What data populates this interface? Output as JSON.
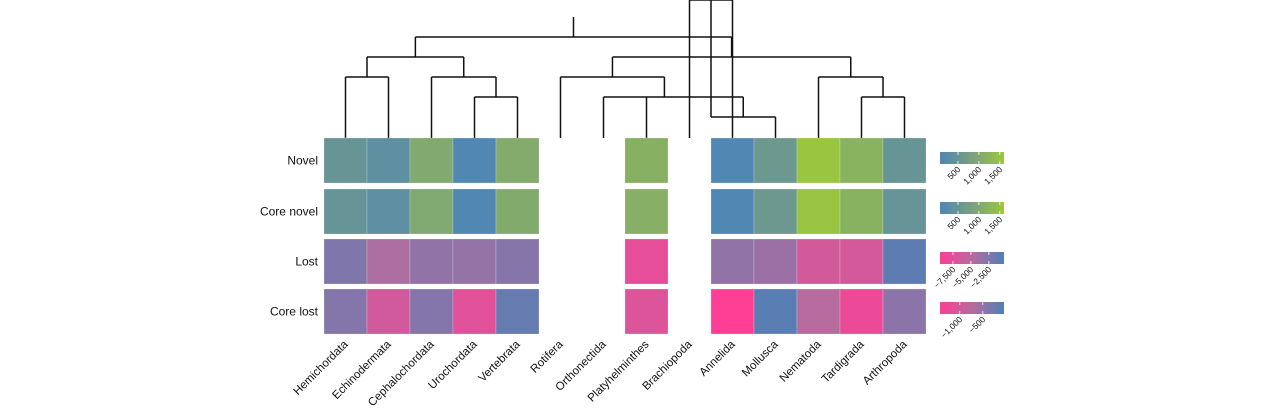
{
  "chart_data": {
    "type": "heatmap",
    "title": "",
    "columns": [
      "Hemichordata",
      "Echinodermata",
      "Cephalochordata",
      "Urochordata",
      "Vertebrata",
      "Rotifera",
      "Orthonectida",
      "Platyhelminthes",
      "Brachiopoda",
      "Annelida",
      "Mollusca",
      "Nematoda",
      "Tardigrada",
      "Arthropoda"
    ],
    "rows": [
      {
        "name": "Novel",
        "values": [
          500,
          350,
          1000,
          100,
          1050,
          null,
          null,
          1150,
          null,
          100,
          600,
          1550,
          1200,
          500
        ],
        "scale": {
          "domain": [
            70,
            1600
          ],
          "colors": [
            "#4f86b5",
            "#7aa07e",
            "#9cc83c"
          ],
          "ticks": [
            500,
            1000,
            1500
          ],
          "tick_labels": [
            "500",
            "1,000",
            "1,500"
          ]
        }
      },
      {
        "name": "Core novel",
        "values": [
          490,
          340,
          980,
          95,
          1030,
          null,
          null,
          1130,
          null,
          95,
          590,
          1530,
          1180,
          490
        ],
        "scale": {
          "domain": [
            70,
            1600
          ],
          "colors": [
            "#4f86b5",
            "#7aa07e",
            "#9cc83c"
          ],
          "ticks": [
            500,
            1000,
            1500
          ],
          "tick_labels": [
            "500",
            "1,000",
            "1,500"
          ]
        }
      },
      {
        "name": "Lost",
        "values": [
          -2500,
          -4500,
          -3300,
          -3400,
          -2800,
          null,
          null,
          -7800,
          null,
          -3300,
          -3700,
          -6600,
          -6700,
          -1000
        ],
        "scale": {
          "domain": [
            -9300,
            -400
          ],
          "colors": [
            "#ff3e96",
            "#b56c9f",
            "#4f80b5"
          ],
          "ticks": [
            -7500,
            -5000,
            -2500
          ],
          "tick_labels": [
            "−7,500",
            "−5,000",
            "−2,500"
          ]
        }
      },
      {
        "name": "Core lost",
        "values": [
          -400,
          -1000,
          -400,
          -1150,
          -200,
          null,
          null,
          -1100,
          null,
          -1430,
          -100,
          -750,
          -1250,
          -450
        ],
        "scale": {
          "domain": [
            -1430,
            -40
          ],
          "colors": [
            "#ff3e96",
            "#b56c9f",
            "#4f80b5"
          ],
          "ticks": [
            -1000,
            -500
          ],
          "tick_labels": [
            "−1,000",
            "−500"
          ]
        }
      }
    ],
    "dendrogram": "((((Hemichordata,Echinodermata),(Cephalochordata,(Urochordata,Vertebrata))),((Rotifera,(Orthonectida,Platyhelminthes,((Brachiopoda,Annelida),Mollusca))),(Nematoda,(Tardigrada,Arthropoda)))))",
    "legend_placement": "right",
    "grid": false
  }
}
